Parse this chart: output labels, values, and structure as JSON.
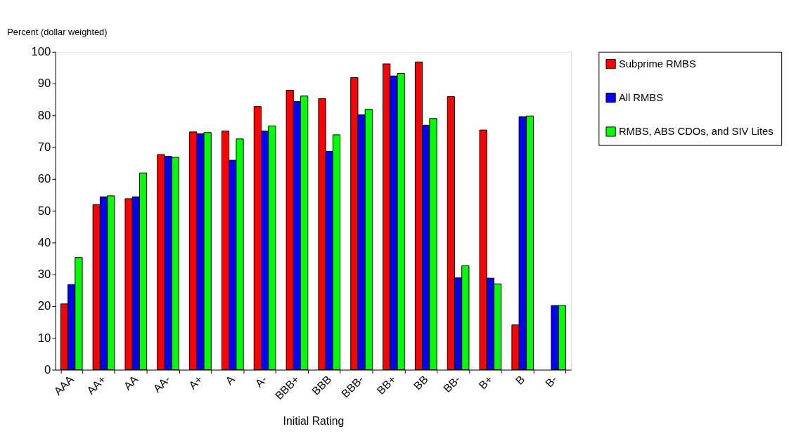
{
  "chart_data": {
    "type": "bar",
    "ylabel": "Percent (dollar weighted)",
    "xlabel": "Initial Rating",
    "categories": [
      "AAA",
      "AA+",
      "AA",
      "AA-",
      "A+",
      "A",
      "A-",
      "BBB+",
      "BBB",
      "BBB-",
      "BB+",
      "BB",
      "BB-",
      "B+",
      "B",
      "B-"
    ],
    "series": [
      {
        "name": "Subprime RMBS",
        "color": "#ff0000",
        "values": [
          20.7,
          51.9,
          53.8,
          67.7,
          74.8,
          75.1,
          82.8,
          87.9,
          85.3,
          91.9,
          96.2,
          96.8,
          85.9,
          75.4,
          14.1,
          null
        ]
      },
      {
        "name": "All RMBS",
        "color": "#0000ff",
        "values": [
          26.8,
          54.4,
          54.4,
          67.1,
          74.2,
          65.9,
          75.1,
          84.4,
          68.7,
          80.2,
          92.4,
          76.9,
          28.9,
          28.8,
          79.6,
          20.2
        ]
      },
      {
        "name": "RMBS, ABS CDOs, and SIV Lites",
        "color": "#00ff00",
        "values": [
          35.3,
          54.7,
          61.9,
          66.8,
          74.6,
          72.6,
          76.7,
          86.1,
          73.9,
          81.9,
          93.2,
          79.0,
          32.7,
          27.0,
          79.8,
          20.2
        ]
      }
    ],
    "ylim": [
      0,
      100
    ],
    "yticks": [
      0,
      10,
      20,
      30,
      40,
      50,
      60,
      70,
      80,
      90,
      100
    ],
    "grid": false,
    "legend": "right"
  }
}
